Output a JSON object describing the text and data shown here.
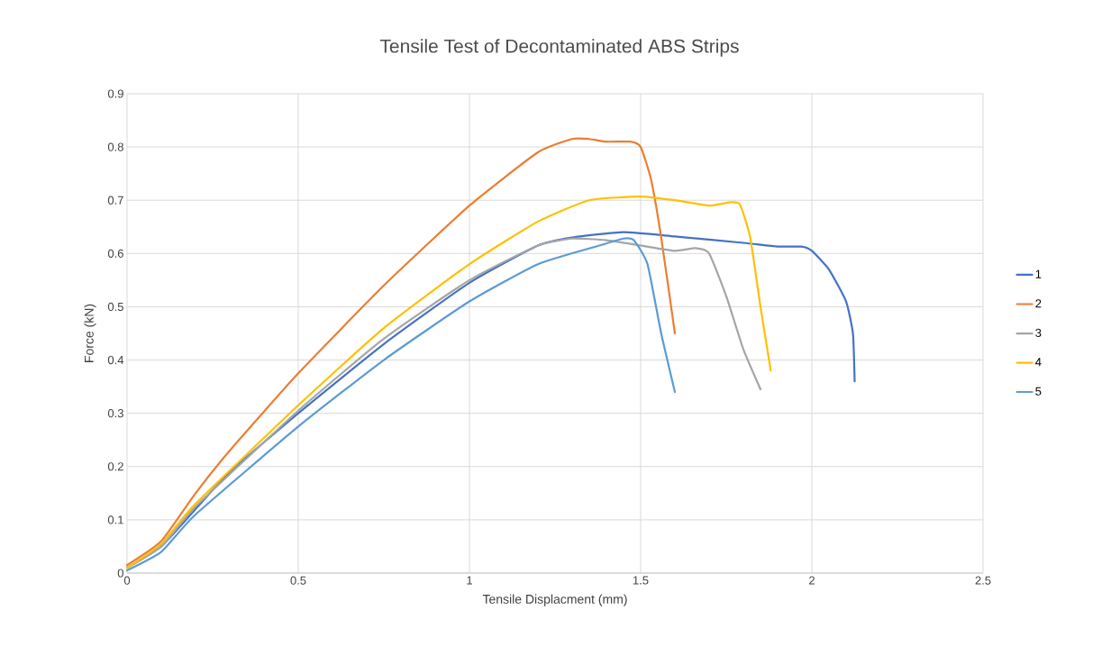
{
  "chart_data": {
    "type": "line",
    "title": "Tensile Test of Decontaminated ABS Strips",
    "xlabel": "Tensile Displacment (mm)",
    "ylabel": "Force (kN)",
    "xlim": [
      0,
      2.5
    ],
    "xticks": [
      0,
      0.5,
      1,
      1.5,
      2,
      2.5
    ],
    "ylim": [
      0,
      0.9
    ],
    "yticks": [
      0,
      0.1,
      0.2,
      0.3,
      0.4,
      0.5,
      0.6,
      0.7,
      0.8,
      0.9
    ],
    "grid": true,
    "legend": "right",
    "marker": "none",
    "line_style": "solid",
    "series": [
      {
        "name": "1",
        "color": "#4472c4",
        "x": [
          0,
          0.1,
          0.2,
          0.3,
          0.5,
          0.75,
          1.0,
          1.2,
          1.3,
          1.45,
          1.6,
          1.8,
          1.9,
          1.97,
          2.0,
          2.05,
          2.1,
          2.12,
          2.125
        ],
        "values": [
          0.01,
          0.05,
          0.12,
          0.19,
          0.3,
          0.43,
          0.545,
          0.615,
          0.63,
          0.64,
          0.632,
          0.62,
          0.613,
          0.613,
          0.605,
          0.57,
          0.51,
          0.45,
          0.36
        ]
      },
      {
        "name": "2",
        "color": "#ed7d31",
        "x": [
          0,
          0.1,
          0.2,
          0.3,
          0.5,
          0.75,
          1.0,
          1.2,
          1.3,
          1.35,
          1.4,
          1.47,
          1.5,
          1.53,
          1.56,
          1.6
        ],
        "values": [
          0.015,
          0.06,
          0.15,
          0.23,
          0.375,
          0.54,
          0.69,
          0.79,
          0.815,
          0.815,
          0.81,
          0.81,
          0.8,
          0.74,
          0.63,
          0.45
        ]
      },
      {
        "name": "3",
        "color": "#a5a5a5",
        "x": [
          0,
          0.1,
          0.2,
          0.5,
          0.75,
          1.0,
          1.2,
          1.3,
          1.4,
          1.5,
          1.6,
          1.66,
          1.7,
          1.75,
          1.8,
          1.85
        ],
        "values": [
          0.01,
          0.05,
          0.125,
          0.305,
          0.44,
          0.55,
          0.615,
          0.628,
          0.625,
          0.615,
          0.605,
          0.61,
          0.6,
          0.52,
          0.42,
          0.345
        ]
      },
      {
        "name": "4",
        "color": "#ffc000",
        "x": [
          0,
          0.1,
          0.2,
          0.5,
          0.75,
          1.0,
          1.2,
          1.35,
          1.5,
          1.6,
          1.7,
          1.76,
          1.79,
          1.82,
          1.85,
          1.88
        ],
        "values": [
          0.01,
          0.055,
          0.13,
          0.315,
          0.46,
          0.58,
          0.66,
          0.7,
          0.707,
          0.7,
          0.69,
          0.696,
          0.692,
          0.63,
          0.5,
          0.38
        ]
      },
      {
        "name": "5",
        "color": "#5b9bd5",
        "x": [
          0,
          0.1,
          0.2,
          0.5,
          0.75,
          1.0,
          1.2,
          1.38,
          1.45,
          1.48,
          1.52,
          1.56,
          1.6
        ],
        "values": [
          0.005,
          0.04,
          0.11,
          0.275,
          0.4,
          0.51,
          0.58,
          0.615,
          0.628,
          0.625,
          0.58,
          0.45,
          0.34
        ]
      }
    ]
  }
}
